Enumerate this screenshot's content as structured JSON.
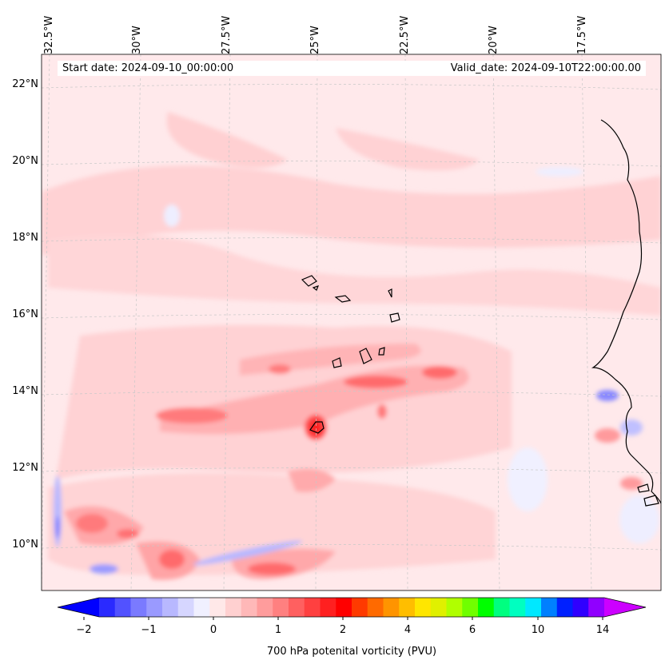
{
  "header": {
    "start_date": "Start date: 2024-09-10_00:00:00",
    "valid_date": "Valid_date: 2024-09-10T22:00:00.00"
  },
  "axes": {
    "lon_labels": [
      "32.5°W",
      "30°W",
      "27.5°W",
      "25°W",
      "22.5°W",
      "20°W",
      "17.5°W"
    ],
    "lat_labels": [
      "22°N",
      "20°N",
      "18°N",
      "16°N",
      "14°N",
      "12°N",
      "10°N"
    ]
  },
  "colorbar": {
    "title": "700 hPa potenital vorticity (PVU)",
    "tick_labels": [
      "−2",
      "−1",
      "0",
      "1",
      "2",
      "4",
      "6",
      "10",
      "14"
    ],
    "colors": [
      "#0000ff",
      "#2a2aff",
      "#5252ff",
      "#7a7aff",
      "#9a9aff",
      "#b8b8ff",
      "#d6d6ff",
      "#f0f0ff",
      "#ffe8e8",
      "#ffd0d0",
      "#ffb8b8",
      "#ff9c9c",
      "#ff8080",
      "#ff6060",
      "#ff4040",
      "#ff2020",
      "#ff0000",
      "#ff3a00",
      "#ff6a00",
      "#ff9400",
      "#ffbe00",
      "#ffe600",
      "#e0f000",
      "#b0ff00",
      "#70ff00",
      "#00ff00",
      "#00ff80",
      "#00ffc0",
      "#00e8ff",
      "#0080ff",
      "#0020ff",
      "#3000ff",
      "#9000ff",
      "#cc00ff"
    ]
  },
  "colors": {
    "background": "#ffe8ea",
    "coast": "#000000"
  }
}
